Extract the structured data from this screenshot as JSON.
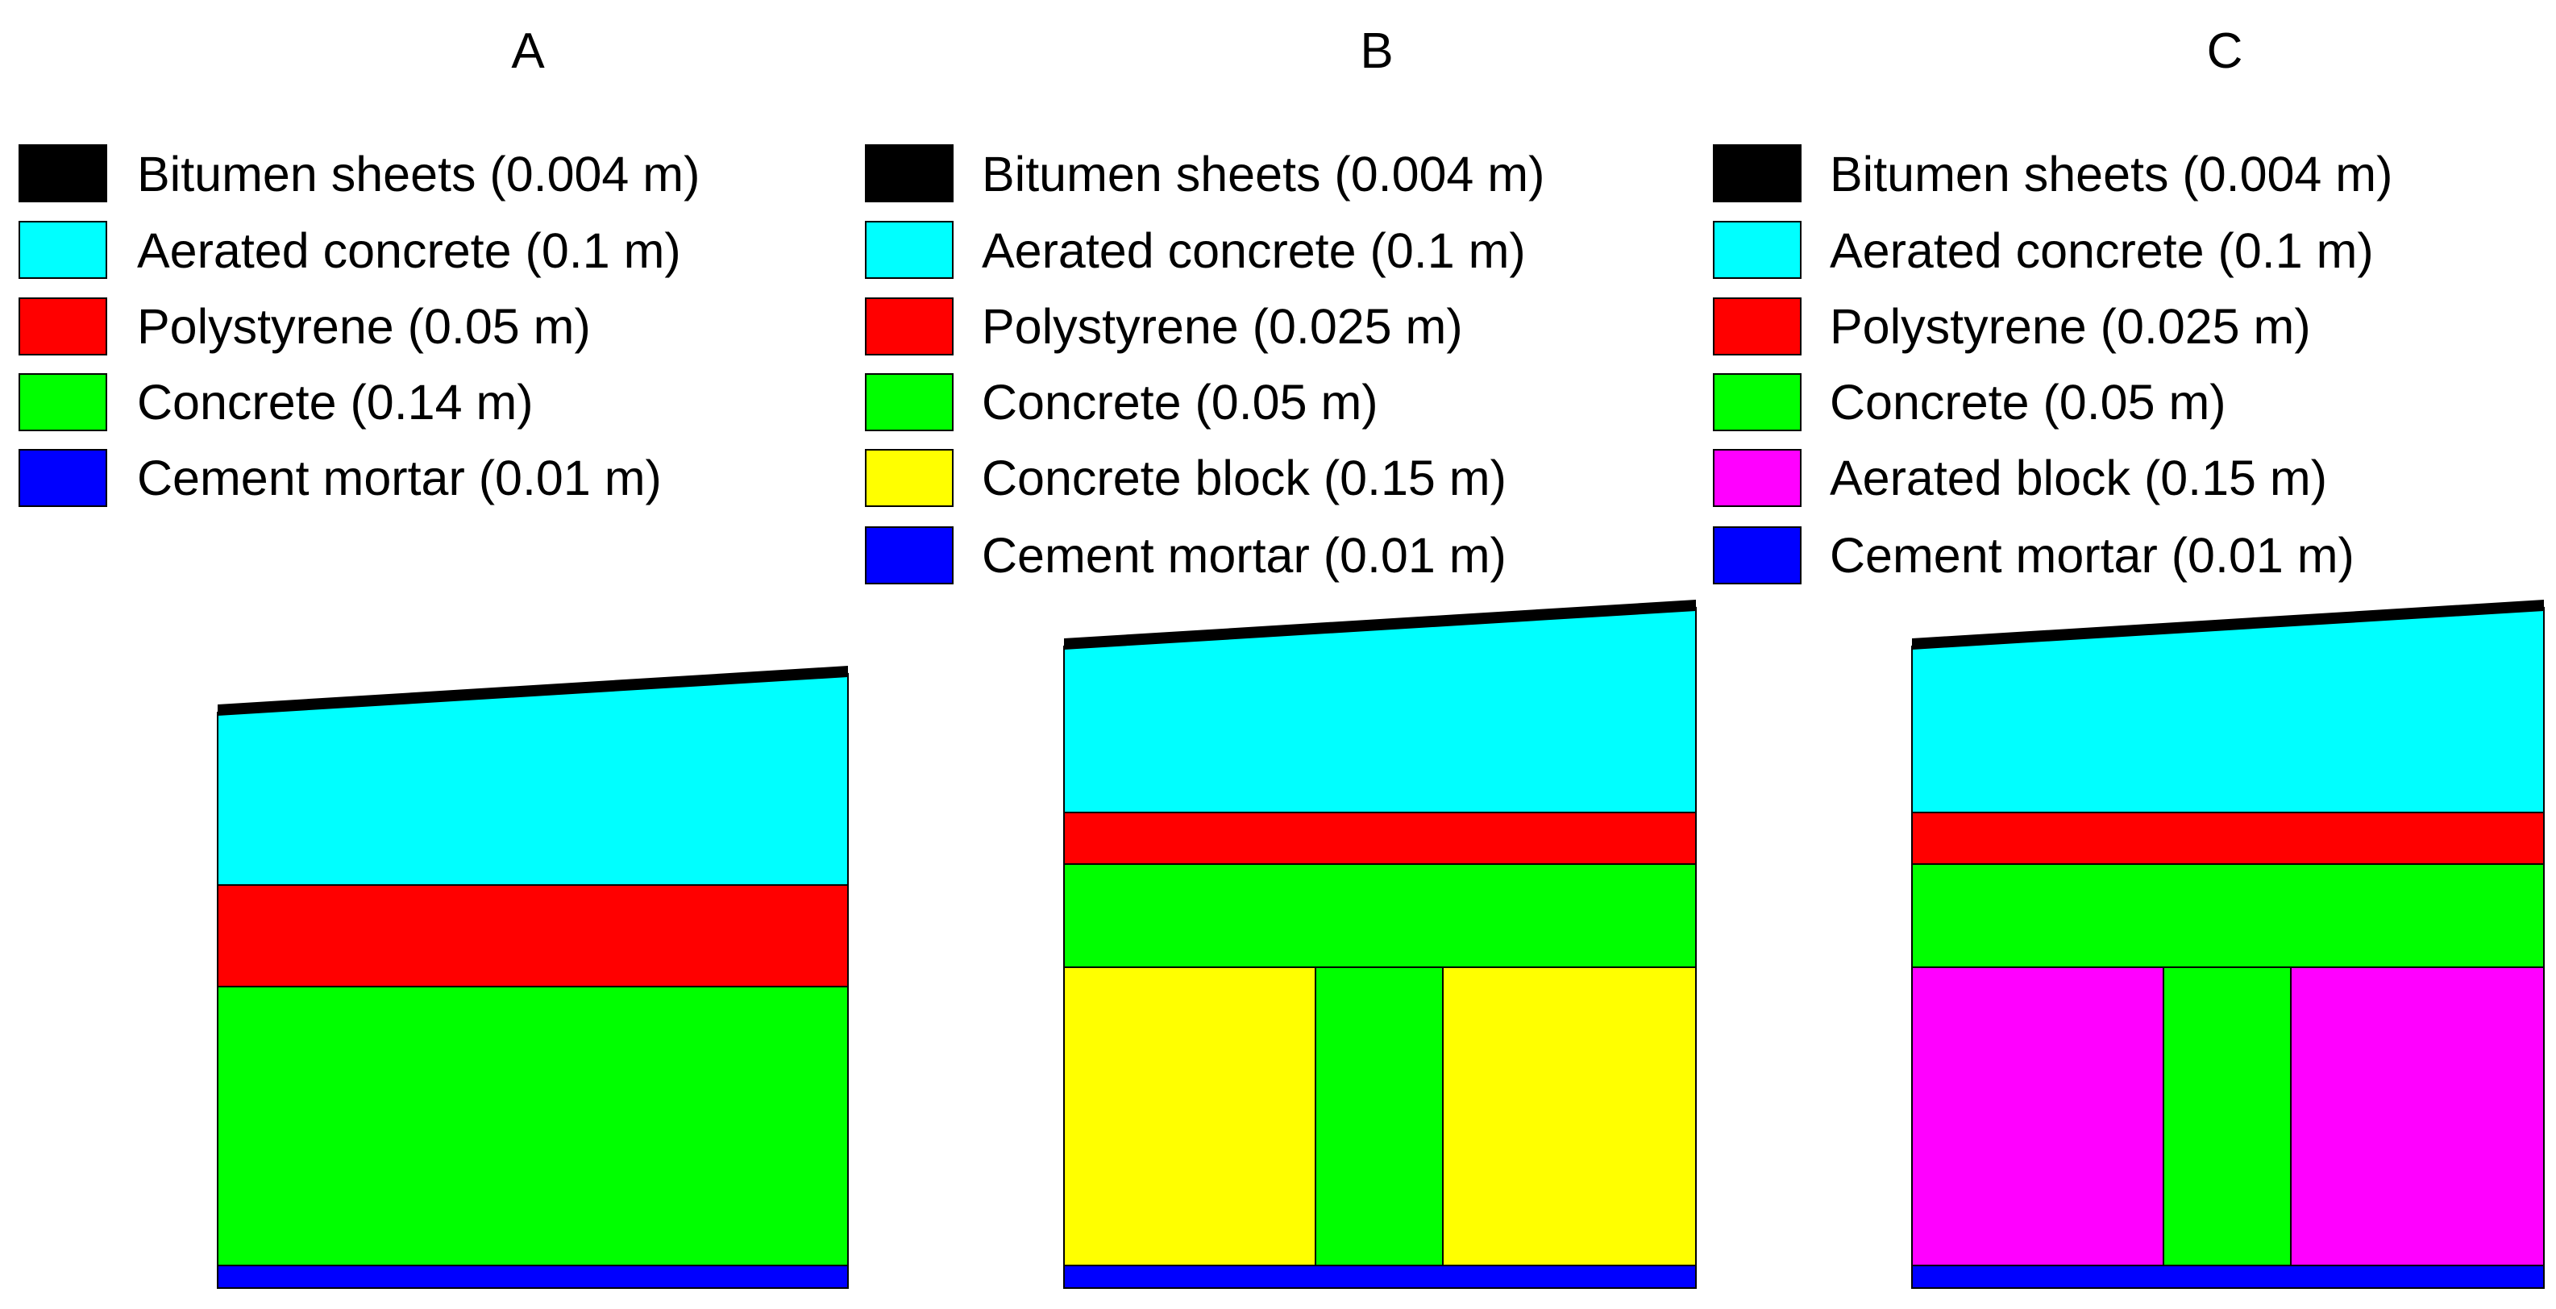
{
  "panels": [
    {
      "title": "A",
      "legend": [
        {
          "label": "Bitumen sheets (0.004 m)",
          "color": "#000000"
        },
        {
          "label": "Aerated concrete (0.1 m)",
          "color": "#00ffff"
        },
        {
          "label": "Polystyrene (0.05 m)",
          "color": "#ff0000"
        },
        {
          "label": "Concrete (0.14 m)",
          "color": "#00ff00"
        },
        {
          "label": "Cement mortar (0.01 m)",
          "color": "#0000ff"
        }
      ]
    },
    {
      "title": "B",
      "legend": [
        {
          "label": "Bitumen sheets (0.004 m)",
          "color": "#000000"
        },
        {
          "label": "Aerated concrete (0.1 m)",
          "color": "#00ffff"
        },
        {
          "label": "Polystyrene (0.025 m)",
          "color": "#ff0000"
        },
        {
          "label": "Concrete (0.05 m)",
          "color": "#00ff00"
        },
        {
          "label": "Concrete block (0.15 m)",
          "color": "#ffff00"
        },
        {
          "label": "Cement mortar (0.01 m)",
          "color": "#0000ff"
        }
      ]
    },
    {
      "title": "C",
      "legend": [
        {
          "label": "Bitumen sheets (0.004 m)",
          "color": "#000000"
        },
        {
          "label": "Aerated concrete (0.1 m)",
          "color": "#00ffff"
        },
        {
          "label": "Polystyrene (0.025 m)",
          "color": "#ff0000"
        },
        {
          "label": "Concrete (0.05 m)",
          "color": "#00ff00"
        },
        {
          "label": "Aerated block (0.15 m)",
          "color": "#ff00ff"
        },
        {
          "label": "Cement mortar (0.01 m)",
          "color": "#0000ff"
        }
      ]
    }
  ]
}
